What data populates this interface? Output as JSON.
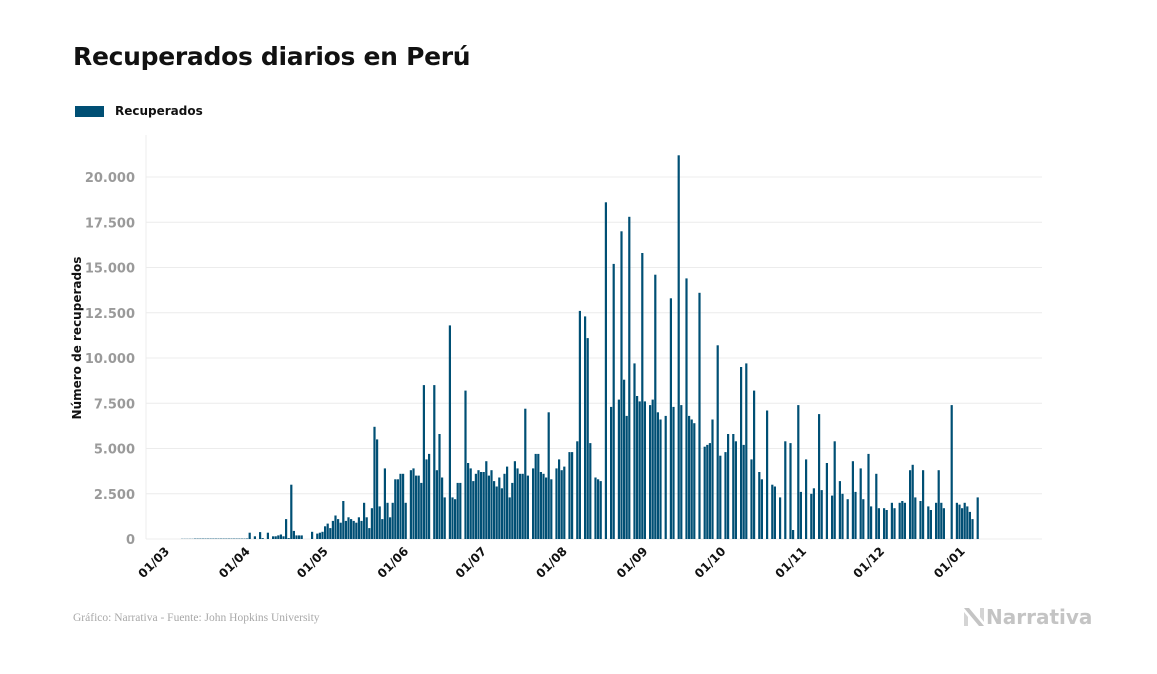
{
  "header": {
    "title": "Recuperados diarios en Perú"
  },
  "legend": {
    "label": "Recuperados",
    "color": "#004f74"
  },
  "footer": {
    "source": "Gráfico: Narrativa - Fuente: John Hopkins University",
    "brand": "Narrativa"
  },
  "chart_data": {
    "type": "bar",
    "title": "Recuperados diarios en Perú",
    "xlabel": "",
    "ylabel": "Número de recuperados",
    "ylim": [
      0,
      21500
    ],
    "grid": true,
    "legend_position": "top-left",
    "bar_color": "#004f74",
    "series": [
      {
        "name": "Recuperados"
      }
    ],
    "start_date": "2020-03-06",
    "y_ticks": [
      {
        "value": 0,
        "label": "0"
      },
      {
        "value": 2500,
        "label": "2.500"
      },
      {
        "value": 5000,
        "label": "5.000"
      },
      {
        "value": 7500,
        "label": "7.500"
      },
      {
        "value": 10000,
        "label": "10.000"
      },
      {
        "value": 12500,
        "label": "12.500"
      },
      {
        "value": 15000,
        "label": "15.000"
      },
      {
        "value": 17500,
        "label": "17.500"
      },
      {
        "value": 20000,
        "label": "20.000"
      }
    ],
    "x_ticks": [
      {
        "day": 0,
        "label": "01/03"
      },
      {
        "day": 31,
        "label": "01/04"
      },
      {
        "day": 61,
        "label": "01/05"
      },
      {
        "day": 92,
        "label": "01/06"
      },
      {
        "day": 122,
        "label": "01/07"
      },
      {
        "day": 153,
        "label": "01/08"
      },
      {
        "day": 184,
        "label": "01/09"
      },
      {
        "day": 214,
        "label": "01/10"
      },
      {
        "day": 245,
        "label": "01/11"
      },
      {
        "day": 275,
        "label": "01/12"
      },
      {
        "day": 306,
        "label": "01/01"
      }
    ],
    "first_day_offset": 5,
    "values": [
      10,
      10,
      10,
      10,
      10,
      20,
      20,
      20,
      20,
      20,
      20,
      20,
      20,
      20,
      20,
      20,
      20,
      20,
      20,
      20,
      20,
      20,
      20,
      20,
      20,
      30,
      350,
      0,
      150,
      0,
      380,
      50,
      0,
      350,
      0,
      150,
      150,
      200,
      250,
      150,
      1100,
      50,
      3000,
      450,
      200,
      200,
      200,
      0,
      0,
      0,
      400,
      0,
      300,
      350,
      400,
      700,
      850,
      600,
      1000,
      1300,
      1100,
      900,
      2100,
      1000,
      1200,
      1100,
      1000,
      900,
      1200,
      1000,
      2000,
      1200,
      600,
      1700,
      6200,
      5500,
      1800,
      1100,
      3900,
      2000,
      1200,
      2000,
      3300,
      3300,
      3600,
      3600,
      2000,
      0,
      3800,
      3900,
      3500,
      3500,
      3100,
      8500,
      4400,
      4700,
      0,
      8500,
      3800,
      5800,
      3400,
      2300,
      0,
      11800,
      2300,
      2200,
      3100,
      3100,
      0,
      8200,
      4200,
      3900,
      3200,
      3600,
      3800,
      3700,
      3700,
      4300,
      3500,
      3800,
      3200,
      2900,
      3400,
      2800,
      3600,
      4000,
      2300,
      3100,
      4300,
      3900,
      3600,
      3600,
      7200,
      3500,
      0,
      3900,
      4700,
      4700,
      3700,
      3600,
      3400,
      7000,
      3300,
      0,
      3900,
      4400,
      3800,
      4000,
      0,
      4800,
      4800,
      0,
      5400,
      12600,
      0,
      12300,
      11100,
      5300,
      0,
      3400,
      3300,
      3200,
      0,
      18600,
      0,
      7300,
      15200,
      0,
      7700,
      17000,
      8800,
      6800,
      17800,
      0,
      9700,
      7900,
      7600,
      15800,
      7600,
      0,
      7400,
      7700,
      14600,
      7000,
      6600,
      0,
      6800,
      0,
      13300,
      7300,
      0,
      21200,
      7400,
      0,
      14400,
      6800,
      6600,
      6400,
      0,
      13600,
      0,
      5100,
      5200,
      5300,
      6600,
      0,
      10700,
      4600,
      0,
      4800,
      5800,
      0,
      5800,
      5400,
      0,
      9500,
      5200,
      9700,
      0,
      4400,
      8200,
      0,
      3700,
      3300,
      0,
      7100,
      0,
      3000,
      2900,
      0,
      2300,
      0,
      5400,
      0,
      5300,
      500,
      0,
      7400,
      2600,
      0,
      4400,
      0,
      2500,
      2800,
      0,
      6900,
      2700,
      0,
      4200,
      0,
      2400,
      5400,
      0,
      3200,
      2500,
      0,
      2200,
      0,
      4300,
      2600,
      0,
      3900,
      2200,
      0,
      4700,
      1800,
      0,
      3600,
      1700,
      0,
      1700,
      1600,
      0,
      2000,
      1700,
      0,
      2000,
      2100,
      2000,
      0,
      3800,
      4100,
      2300,
      0,
      2100,
      3800,
      0,
      1800,
      1600,
      0,
      2000,
      3800,
      2000,
      1700,
      0,
      0,
      7400,
      0,
      2000,
      1900,
      1700,
      2000,
      1800,
      1500,
      1100,
      0,
      2300
    ]
  }
}
